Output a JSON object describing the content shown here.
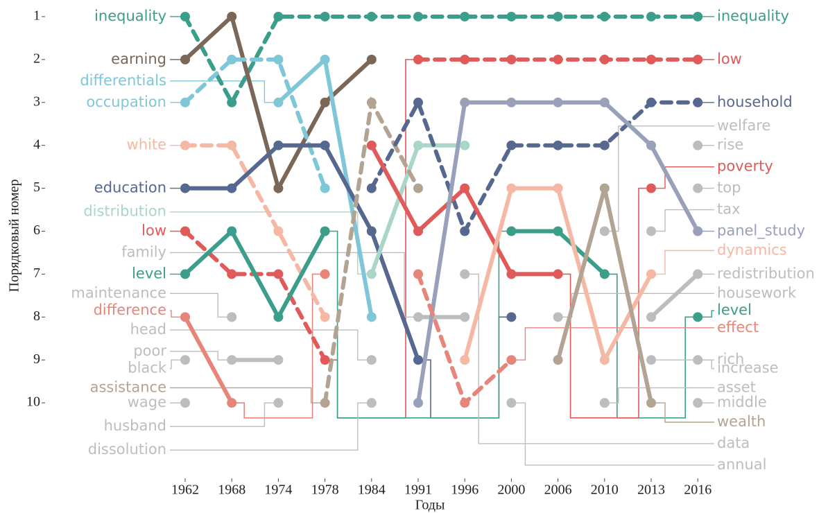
{
  "chart_data": {
    "type": "bump",
    "xlabel": "Годы",
    "ylabel": "Порядковый номер",
    "categories": [
      "1962",
      "1968",
      "1974",
      "1978",
      "1984",
      "1991",
      "1996",
      "2000",
      "2006",
      "2010",
      "2013",
      "2016"
    ],
    "ylim": [
      11.5,
      0.7
    ],
    "yticks": [
      1,
      2,
      3,
      4,
      5,
      6,
      7,
      8,
      9,
      10
    ],
    "series": [
      {
        "label_left": "inequality",
        "label_right": "inequality",
        "color": "#3a9e8a",
        "dashed": true,
        "values": [
          1,
          3,
          1,
          1,
          1,
          1,
          1,
          1,
          1,
          1,
          1,
          1
        ]
      },
      {
        "label_left": "earning",
        "color": "#7a6757",
        "dashed": false,
        "values": [
          2,
          1,
          5,
          3,
          2,
          null,
          null,
          null,
          null,
          null,
          null,
          null
        ]
      },
      {
        "label_left": "differentials",
        "color": "#7fc6d8",
        "dashed": false,
        "values": [
          null,
          null,
          3,
          2,
          8,
          null,
          null,
          null,
          null,
          null,
          null,
          null
        ]
      },
      {
        "label_left": "occupation",
        "color": "#7fc6d8",
        "dashed": true,
        "values": [
          3,
          2,
          2,
          5,
          null,
          null,
          null,
          null,
          null,
          null,
          null,
          null
        ]
      },
      {
        "label_left": "white",
        "color": "#f4b8a4",
        "dashed": true,
        "values": [
          4,
          4,
          6,
          8,
          null,
          null,
          null,
          null,
          null,
          null,
          null,
          null
        ]
      },
      {
        "label_left": "education",
        "color": "#56688f",
        "dashed": false,
        "values": [
          5,
          5,
          4,
          4,
          6,
          9,
          null,
          8,
          null,
          null,
          null,
          null
        ]
      },
      {
        "label_left": "distribution",
        "color": "#a9d6c8",
        "dashed": false,
        "values": [
          null,
          null,
          null,
          null,
          7,
          4,
          4,
          null,
          null,
          null,
          null,
          null
        ]
      },
      {
        "label_left": "low",
        "label_right": "low",
        "color": "#e05a5a",
        "dashed": true,
        "values": [
          6,
          7,
          7,
          9,
          null,
          2,
          2,
          2,
          2,
          2,
          2,
          2
        ]
      },
      {
        "label_left": "family",
        "color": "#bdbdbd",
        "dashed": false,
        "values": [
          null,
          null,
          null,
          null,
          null,
          8,
          8,
          null,
          null,
          null,
          null,
          null
        ]
      },
      {
        "label_left": "level",
        "label_right": "level",
        "color": "#3a9e8a",
        "dashed": false,
        "values": [
          7,
          6,
          8,
          6,
          null,
          null,
          null,
          6,
          6,
          7,
          null,
          8
        ]
      },
      {
        "label_left": "maintenance",
        "color": "#bdbdbd",
        "dashed": false,
        "values": [
          null,
          8,
          null,
          null,
          null,
          null,
          null,
          null,
          null,
          null,
          null,
          null
        ]
      },
      {
        "label_left": "difference",
        "color": "#e8857a",
        "dashed": false,
        "values": [
          8,
          10,
          null,
          7,
          null,
          null,
          null,
          null,
          null,
          null,
          null,
          null
        ]
      },
      {
        "label_left": "head",
        "color": "#bdbdbd",
        "dashed": false,
        "values": [
          null,
          null,
          null,
          null,
          9,
          null,
          null,
          null,
          null,
          null,
          null,
          null
        ]
      },
      {
        "label_left": "poor",
        "color": "#bdbdbd",
        "dashed": false,
        "values": [
          null,
          9,
          9,
          null,
          null,
          null,
          null,
          null,
          null,
          null,
          null,
          null
        ]
      },
      {
        "label_left": "black",
        "color": "#bdbdbd",
        "dashed": false,
        "values": [
          9,
          null,
          null,
          null,
          null,
          null,
          null,
          null,
          null,
          null,
          null,
          null
        ]
      },
      {
        "label_left": "assistance",
        "color": "#b3a393",
        "dashed": true,
        "values": [
          null,
          null,
          null,
          10,
          3,
          5,
          null,
          null,
          null,
          null,
          null,
          null
        ]
      },
      {
        "label_left": "wage",
        "color": "#bdbdbd",
        "dashed": false,
        "values": [
          10,
          null,
          null,
          null,
          null,
          null,
          null,
          null,
          null,
          null,
          null,
          null
        ]
      },
      {
        "label_left": "husband",
        "color": "#bdbdbd",
        "dashed": false,
        "values": [
          null,
          null,
          10,
          null,
          null,
          null,
          null,
          null,
          null,
          null,
          null,
          null
        ]
      },
      {
        "label_left": "dissolution",
        "color": "#bdbdbd",
        "dashed": false,
        "values": [
          null,
          null,
          null,
          null,
          10,
          null,
          null,
          null,
          null,
          null,
          null,
          null
        ]
      },
      {
        "label_right": "household",
        "color": "#56688f",
        "dashed": true,
        "values": [
          null,
          null,
          null,
          null,
          5,
          3,
          6,
          4,
          4,
          4,
          3,
          3
        ]
      },
      {
        "label_right": "welfare",
        "color": "#bdbdbd",
        "dashed": false,
        "values": [
          null,
          null,
          null,
          null,
          null,
          null,
          null,
          null,
          null,
          6,
          null,
          null
        ]
      },
      {
        "label_right": "rise",
        "color": "#bdbdbd",
        "dashed": false,
        "values": [
          null,
          null,
          null,
          null,
          null,
          null,
          null,
          null,
          null,
          null,
          null,
          4
        ]
      },
      {
        "label_right": "poverty",
        "color": "#e05a5a",
        "dashed": false,
        "values": [
          null,
          null,
          null,
          null,
          4,
          6,
          5,
          7,
          7,
          null,
          5,
          null
        ]
      },
      {
        "label_right": "top",
        "color": "#bdbdbd",
        "dashed": false,
        "values": [
          null,
          null,
          null,
          null,
          null,
          null,
          null,
          null,
          null,
          null,
          null,
          5
        ]
      },
      {
        "label_right": "tax",
        "color": "#bdbdbd",
        "dashed": false,
        "values": [
          null,
          null,
          null,
          null,
          null,
          null,
          null,
          null,
          null,
          null,
          6,
          null
        ]
      },
      {
        "label_right": "panel_study",
        "color": "#99a0ba",
        "dashed": false,
        "values": [
          null,
          null,
          null,
          null,
          null,
          10,
          3,
          3,
          3,
          3,
          4,
          6
        ]
      },
      {
        "label_right": "dynamics",
        "color": "#f4b8a4",
        "dashed": false,
        "values": [
          null,
          null,
          null,
          null,
          null,
          null,
          9,
          5,
          5,
          9,
          7,
          null
        ]
      },
      {
        "label_right": "redistribution",
        "color": "#bdbdbd",
        "dashed": false,
        "values": [
          null,
          null,
          null,
          null,
          null,
          null,
          null,
          null,
          null,
          null,
          8,
          7
        ]
      },
      {
        "label_right": "housework",
        "color": "#bdbdbd",
        "dashed": false,
        "values": [
          null,
          null,
          null,
          null,
          null,
          null,
          null,
          null,
          8,
          null,
          null,
          null
        ]
      },
      {
        "label_right": "effect",
        "color": "#e8857a",
        "dashed": true,
        "values": [
          null,
          null,
          null,
          null,
          null,
          7,
          10,
          9,
          null,
          null,
          null,
          null
        ]
      },
      {
        "label_right": "rich",
        "color": "#bdbdbd",
        "dashed": false,
        "values": [
          null,
          null,
          null,
          null,
          null,
          null,
          null,
          null,
          null,
          null,
          9,
          null
        ]
      },
      {
        "label_right": "increase",
        "color": "#bdbdbd",
        "dashed": false,
        "values": [
          null,
          null,
          null,
          null,
          null,
          null,
          null,
          null,
          null,
          null,
          null,
          9
        ]
      },
      {
        "label_right": "asset",
        "color": "#bdbdbd",
        "dashed": false,
        "values": [
          null,
          null,
          null,
          null,
          null,
          null,
          null,
          null,
          null,
          10,
          null,
          null
        ]
      },
      {
        "label_right": "middle",
        "color": "#bdbdbd",
        "dashed": false,
        "values": [
          null,
          null,
          null,
          null,
          null,
          null,
          null,
          null,
          null,
          null,
          null,
          10
        ]
      },
      {
        "label_right": "wealth",
        "color": "#b3a393",
        "dashed": false,
        "values": [
          null,
          null,
          null,
          null,
          null,
          null,
          null,
          null,
          9,
          5,
          10,
          null
        ]
      },
      {
        "label_right": "data",
        "color": "#bdbdbd",
        "dashed": false,
        "values": [
          null,
          null,
          null,
          null,
          null,
          null,
          7,
          null,
          null,
          null,
          null,
          null
        ]
      },
      {
        "label_right": "annual",
        "color": "#bdbdbd",
        "dashed": false,
        "values": [
          null,
          null,
          null,
          null,
          null,
          null,
          null,
          10,
          null,
          null,
          null,
          null
        ]
      }
    ]
  }
}
